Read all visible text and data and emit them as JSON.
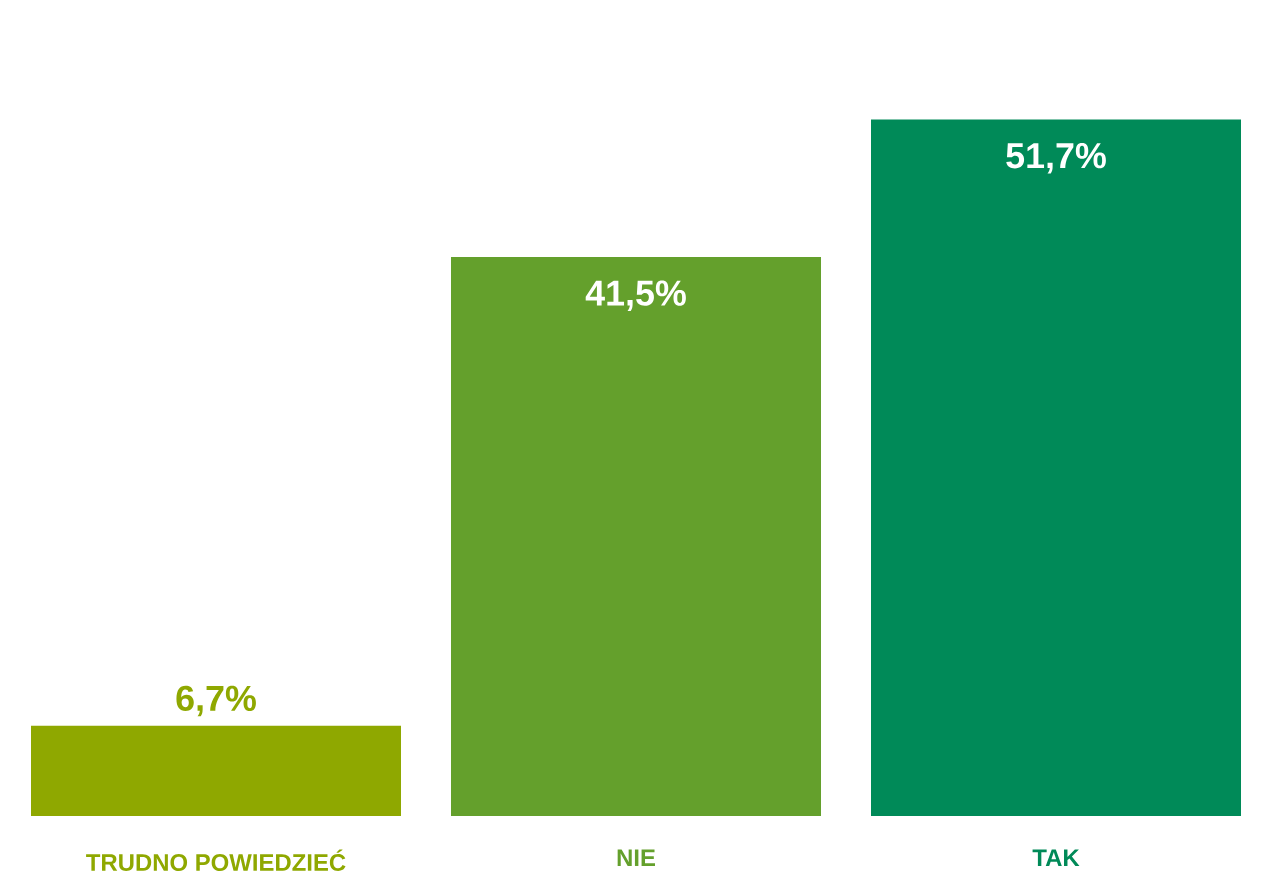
{
  "chart_data": {
    "type": "bar",
    "categories": [
      "TRUDNO POWIEDZIEĆ",
      "NIE",
      "TAK"
    ],
    "values": [
      6.7,
      41.5,
      51.7
    ],
    "colors": [
      "#8fa800",
      "#64a02c",
      "#008a58"
    ],
    "value_labels": [
      "6,7%",
      "41,5%",
      "51,7%"
    ]
  }
}
